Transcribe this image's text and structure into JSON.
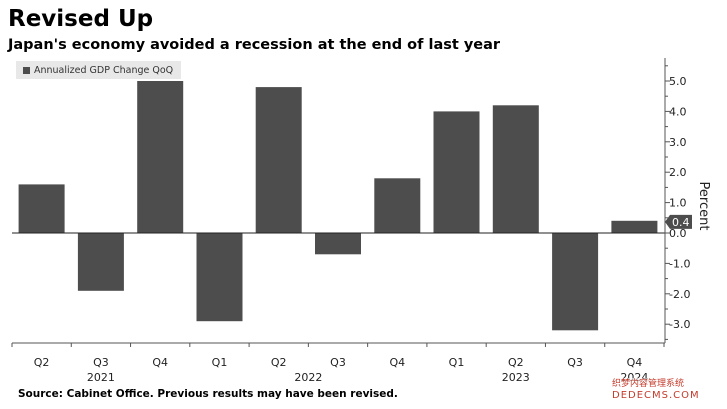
{
  "header": {
    "title": "Revised Up",
    "subtitle": "Japan's economy avoided a recession at the end of last year"
  },
  "footer": {
    "source": "Source:  Cabinet Office. Previous results may have been revised."
  },
  "watermark": {
    "line1": "织梦内容管理系统",
    "line2": "DEDECMS.COM"
  },
  "colors": {
    "bar": "#4d4d4d",
    "zero_line": "#222222",
    "last_value_label_bg": "#4d4d4d",
    "last_value_label_text": "#ffffff"
  },
  "chart_data": {
    "type": "bar",
    "categories": [
      "Q2",
      "Q3",
      "Q4",
      "Q1",
      "Q2",
      "Q3",
      "Q4",
      "Q1",
      "Q2",
      "Q3",
      "Q4"
    ],
    "year_labels": [
      {
        "label": "2021",
        "span": [
          0,
          2
        ]
      },
      {
        "label": "2022",
        "span": [
          3,
          6
        ]
      },
      {
        "label": "2023",
        "span": [
          7,
          9
        ]
      },
      {
        "label": "2024",
        "span": [
          10,
          10
        ]
      }
    ],
    "series": [
      {
        "name": "Annualized GDP Change QoQ",
        "values": [
          1.6,
          -1.9,
          5.0,
          -2.9,
          4.8,
          -0.7,
          1.8,
          4.0,
          4.2,
          -3.2,
          0.4
        ]
      }
    ],
    "ylabel": "Percent",
    "ylim": [
      -3.6,
      5.8
    ],
    "yticks": [
      5.0,
      4.0,
      3.0,
      2.0,
      1.0,
      0.0,
      -1.0,
      -2.0,
      -3.0
    ],
    "ytick_labels": [
      "5.0",
      "4.0",
      "3.0",
      "2.0",
      "1.0",
      "0.0",
      "-1.0",
      "-2.0",
      "-3.0"
    ],
    "last_value_label": "0.4",
    "legend": "top-left",
    "grid": false
  }
}
